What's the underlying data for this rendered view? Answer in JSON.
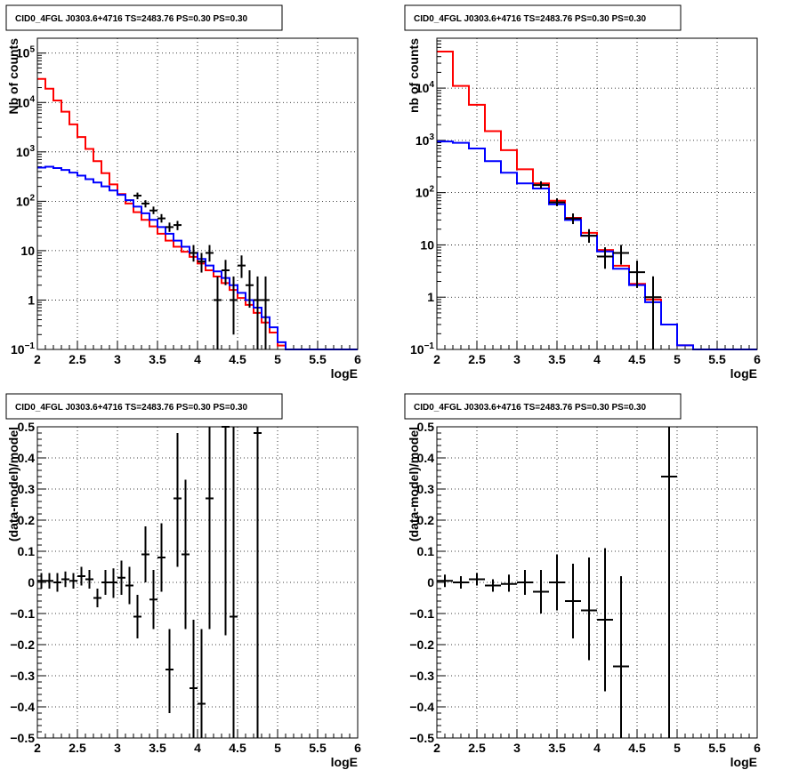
{
  "chart_data": [
    {
      "type": "step",
      "title": "CID0_4FGL J0303.6+4716 TS=2483.76 PS=0.30 PS=0.30",
      "xlabel": "logE",
      "ylabel": "Nb of counts",
      "xlim": [
        2,
        6
      ],
      "ylim": [
        0.1,
        200000
      ],
      "yscale": "log",
      "grid": true,
      "x_ticks": [
        "2",
        "2.5",
        "3",
        "3.5",
        "4",
        "4.5",
        "5",
        "5.5",
        "6"
      ],
      "y_ticks": [
        {
          "v": 0.1,
          "label": "10",
          "sup": "−1"
        },
        {
          "v": 1,
          "label": "1",
          "sup": ""
        },
        {
          "v": 10,
          "label": "10",
          "sup": ""
        },
        {
          "v": 100,
          "label": "10",
          "sup": "2"
        },
        {
          "v": 1000,
          "label": "10",
          "sup": "3"
        },
        {
          "v": 10000,
          "label": "10",
          "sup": "4"
        },
        {
          "v": 100000,
          "label": "10",
          "sup": "5"
        }
      ],
      "bin_edges": [
        2.0,
        2.1,
        2.2,
        2.3,
        2.4,
        2.5,
        2.6,
        2.7,
        2.8,
        2.9,
        3.0,
        3.1,
        3.2,
        3.3,
        3.4,
        3.5,
        3.6,
        3.7,
        3.8,
        3.9,
        4.0,
        4.1,
        4.2,
        4.3,
        4.4,
        4.5,
        4.6,
        4.7,
        4.8,
        4.9,
        5.0,
        5.1,
        5.2,
        5.3,
        5.4,
        5.5,
        5.6,
        5.7,
        5.8,
        5.9,
        6.0
      ],
      "series": [
        {
          "color": "#ff0000",
          "values": [
            30000,
            19000,
            11000,
            6500,
            3600,
            2000,
            1150,
            650,
            370,
            220,
            140,
            90,
            60,
            42,
            31,
            22,
            16,
            12,
            9.5,
            7.5,
            5.5,
            4.0,
            3.0,
            2.2,
            1.6,
            1.1,
            0.8,
            0.55,
            0.35,
            0.22,
            0.12,
            0.1,
            0.1,
            0.1,
            0.1,
            0.1,
            0.1,
            0.1,
            0.1,
            0.1
          ]
        },
        {
          "color": "#0000ff",
          "values": [
            480,
            500,
            470,
            430,
            380,
            330,
            280,
            240,
            200,
            165,
            135,
            105,
            78,
            57,
            42,
            30,
            22,
            16,
            12,
            9.0,
            6.8,
            5.0,
            3.8,
            2.8,
            2.0,
            1.4,
            1.0,
            0.7,
            0.45,
            0.28,
            0.14,
            0.1,
            0.1,
            0.1,
            0.1,
            0.1,
            0.1,
            0.1,
            0.1,
            0.1
          ]
        }
      ],
      "points": [
        {
          "x": 3.25,
          "y": 130,
          "ex": 0.05,
          "lo": 110,
          "hi": 150
        },
        {
          "x": 3.35,
          "y": 90,
          "ex": 0.05,
          "lo": 75,
          "hi": 105
        },
        {
          "x": 3.45,
          "y": 65,
          "ex": 0.05,
          "lo": 55,
          "hi": 78
        },
        {
          "x": 3.55,
          "y": 45,
          "ex": 0.05,
          "lo": 37,
          "hi": 55
        },
        {
          "x": 3.65,
          "y": 30,
          "ex": 0.05,
          "lo": 24,
          "hi": 37
        },
        {
          "x": 3.75,
          "y": 33,
          "ex": 0.05,
          "lo": 26,
          "hi": 40
        },
        {
          "x": 3.95,
          "y": 9,
          "ex": 0.05,
          "lo": 6,
          "hi": 13
        },
        {
          "x": 4.05,
          "y": 6,
          "ex": 0.05,
          "lo": 3.6,
          "hi": 9
        },
        {
          "x": 4.15,
          "y": 9,
          "ex": 0.05,
          "lo": 6,
          "hi": 13
        },
        {
          "x": 4.25,
          "y": 1,
          "ex": 0.05,
          "lo": 0.1,
          "hi": 3
        },
        {
          "x": 4.35,
          "y": 4,
          "ex": 0.05,
          "lo": 2,
          "hi": 6.5
        },
        {
          "x": 4.45,
          "y": 1,
          "ex": 0.05,
          "lo": 0.2,
          "hi": 3
        },
        {
          "x": 4.55,
          "y": 5,
          "ex": 0.05,
          "lo": 2.8,
          "hi": 8
        },
        {
          "x": 4.65,
          "y": 2,
          "ex": 0.05,
          "lo": 0.7,
          "hi": 4
        },
        {
          "x": 4.75,
          "y": 1,
          "ex": 0.05,
          "lo": 0.1,
          "hi": 3
        },
        {
          "x": 4.85,
          "y": 1,
          "ex": 0.05,
          "lo": 0.1,
          "hi": 3
        }
      ]
    },
    {
      "type": "step",
      "title": "CID0_4FGL J0303.6+4716 TS=2483.76 PS=0.30 PS=0.30",
      "xlabel": "logE",
      "ylabel": "nb of counts",
      "xlim": [
        2,
        6
      ],
      "ylim": [
        0.1,
        90000
      ],
      "yscale": "log",
      "grid": true,
      "x_ticks": [
        "2",
        "2.5",
        "3",
        "3.5",
        "4",
        "4.5",
        "5",
        "5.5",
        "6"
      ],
      "y_ticks": [
        {
          "v": 0.1,
          "label": "10",
          "sup": "−1"
        },
        {
          "v": 1,
          "label": "1",
          "sup": ""
        },
        {
          "v": 10,
          "label": "10",
          "sup": ""
        },
        {
          "v": 100,
          "label": "10",
          "sup": "2"
        },
        {
          "v": 1000,
          "label": "10",
          "sup": "3"
        },
        {
          "v": 10000,
          "label": "10",
          "sup": "4"
        }
      ],
      "bin_edges": [
        2.0,
        2.2,
        2.4,
        2.6,
        2.8,
        3.0,
        3.2,
        3.4,
        3.6,
        3.8,
        4.0,
        4.2,
        4.4,
        4.6,
        4.8,
        5.0,
        5.2,
        5.4,
        5.6,
        5.8,
        6.0
      ],
      "series": [
        {
          "color": "#ff0000",
          "values": [
            50000,
            11000,
            4800,
            1500,
            650,
            280,
            150,
            70,
            33,
            17,
            8,
            4,
            1.8,
            0.9,
            0.3,
            0.12,
            0.1,
            0.1,
            0.1,
            0.1
          ]
        },
        {
          "color": "#0000ff",
          "values": [
            950,
            900,
            700,
            400,
            240,
            150,
            120,
            60,
            30,
            15,
            7.5,
            3.5,
            1.7,
            0.8,
            0.3,
            0.12,
            0.1,
            0.1,
            0.1,
            0.1
          ]
        }
      ],
      "points": [
        {
          "x": 3.3,
          "y": 140,
          "ex": 0.1,
          "lo": 120,
          "hi": 165
        },
        {
          "x": 3.5,
          "y": 65,
          "ex": 0.1,
          "lo": 55,
          "hi": 78
        },
        {
          "x": 3.7,
          "y": 32,
          "ex": 0.1,
          "lo": 25,
          "hi": 40
        },
        {
          "x": 3.9,
          "y": 15,
          "ex": 0.1,
          "lo": 11,
          "hi": 20
        },
        {
          "x": 4.1,
          "y": 6,
          "ex": 0.1,
          "lo": 3.5,
          "hi": 9
        },
        {
          "x": 4.3,
          "y": 7,
          "ex": 0.1,
          "lo": 4.2,
          "hi": 10
        },
        {
          "x": 4.5,
          "y": 3,
          "ex": 0.1,
          "lo": 1.5,
          "hi": 5
        },
        {
          "x": 4.7,
          "y": 1,
          "ex": 0.1,
          "lo": 0.1,
          "hi": 2.5
        }
      ]
    },
    {
      "type": "scatter",
      "title": "CID0_4FGL J0303.6+4716 TS=2483.76 PS=0.30 PS=0.30",
      "xlabel": "logE",
      "ylabel": "(data-model)/model",
      "xlim": [
        2,
        6
      ],
      "ylim": [
        -0.5,
        0.5
      ],
      "yscale": "linear",
      "grid": true,
      "x_ticks": [
        "2",
        "2.5",
        "3",
        "3.5",
        "4",
        "4.5",
        "5",
        "5.5",
        "6"
      ],
      "y_ticks": [
        {
          "v": -0.5,
          "label": "−0.5"
        },
        {
          "v": -0.4,
          "label": "−0.4"
        },
        {
          "v": -0.3,
          "label": "−0.3"
        },
        {
          "v": -0.2,
          "label": "−0.2"
        },
        {
          "v": -0.1,
          "label": "−0.1"
        },
        {
          "v": 0,
          "label": "0"
        },
        {
          "v": 0.1,
          "label": "0.1"
        },
        {
          "v": 0.2,
          "label": "0.2"
        },
        {
          "v": 0.3,
          "label": "0.3"
        },
        {
          "v": 0.4,
          "label": "0.4"
        },
        {
          "v": 0.5,
          "label": "0.5"
        }
      ],
      "points": [
        {
          "x": 2.05,
          "y": 0.005,
          "ex": 0.05,
          "lo": -0.02,
          "hi": 0.03
        },
        {
          "x": 2.15,
          "y": 0.005,
          "ex": 0.05,
          "lo": -0.02,
          "hi": 0.03
        },
        {
          "x": 2.25,
          "y": 0.0,
          "ex": 0.05,
          "lo": -0.03,
          "hi": 0.03
        },
        {
          "x": 2.35,
          "y": 0.01,
          "ex": 0.05,
          "lo": -0.015,
          "hi": 0.035
        },
        {
          "x": 2.45,
          "y": 0.005,
          "ex": 0.05,
          "lo": -0.02,
          "hi": 0.03
        },
        {
          "x": 2.55,
          "y": 0.02,
          "ex": 0.05,
          "lo": -0.01,
          "hi": 0.05
        },
        {
          "x": 2.65,
          "y": 0.01,
          "ex": 0.05,
          "lo": -0.02,
          "hi": 0.04
        },
        {
          "x": 2.75,
          "y": -0.05,
          "ex": 0.05,
          "lo": -0.08,
          "hi": -0.02
        },
        {
          "x": 2.85,
          "y": 0.0,
          "ex": 0.05,
          "lo": -0.04,
          "hi": 0.04
        },
        {
          "x": 2.95,
          "y": 0.0,
          "ex": 0.05,
          "lo": -0.05,
          "hi": 0.045
        },
        {
          "x": 3.05,
          "y": 0.015,
          "ex": 0.05,
          "lo": -0.04,
          "hi": 0.07
        },
        {
          "x": 3.15,
          "y": -0.01,
          "ex": 0.05,
          "lo": -0.07,
          "hi": 0.05
        },
        {
          "x": 3.25,
          "y": -0.11,
          "ex": 0.05,
          "lo": -0.18,
          "hi": -0.04
        },
        {
          "x": 3.35,
          "y": 0.09,
          "ex": 0.05,
          "lo": 0.0,
          "hi": 0.18
        },
        {
          "x": 3.45,
          "y": -0.055,
          "ex": 0.05,
          "lo": -0.15,
          "hi": 0.04
        },
        {
          "x": 3.55,
          "y": 0.08,
          "ex": 0.05,
          "lo": -0.03,
          "hi": 0.19
        },
        {
          "x": 3.65,
          "y": -0.28,
          "ex": 0.05,
          "lo": -0.42,
          "hi": -0.15
        },
        {
          "x": 3.75,
          "y": 0.27,
          "ex": 0.05,
          "lo": 0.05,
          "hi": 0.48
        },
        {
          "x": 3.85,
          "y": 0.09,
          "ex": 0.05,
          "lo": -0.15,
          "hi": 0.33
        },
        {
          "x": 3.95,
          "y": -0.34,
          "ex": 0.05,
          "lo": -0.5,
          "hi": -0.12
        },
        {
          "x": 4.05,
          "y": -0.39,
          "ex": 0.05,
          "lo": -0.5,
          "hi": -0.15
        },
        {
          "x": 4.15,
          "y": 0.27,
          "ex": 0.05,
          "lo": -0.15,
          "hi": 0.5
        },
        {
          "x": 4.35,
          "y": 0.5,
          "ex": 0.05,
          "lo": -0.17,
          "hi": 0.5
        },
        {
          "x": 4.45,
          "y": -0.11,
          "ex": 0.05,
          "lo": -0.5,
          "hi": 0.5
        },
        {
          "x": 4.75,
          "y": 0.48,
          "ex": 0.05,
          "lo": -0.5,
          "hi": 0.5
        }
      ]
    },
    {
      "type": "scatter",
      "title": "CID0_4FGL J0303.6+4716 TS=2483.76 PS=0.30 PS=0.30",
      "xlabel": "logE",
      "ylabel": "(data-model)/model",
      "xlim": [
        2,
        6
      ],
      "ylim": [
        -0.5,
        0.5
      ],
      "yscale": "linear",
      "grid": true,
      "x_ticks": [
        "2",
        "2.5",
        "3",
        "3.5",
        "4",
        "4.5",
        "5",
        "5.5",
        "6"
      ],
      "y_ticks": [
        {
          "v": -0.5,
          "label": "−0.5"
        },
        {
          "v": -0.4,
          "label": "−0.4"
        },
        {
          "v": -0.3,
          "label": "−0.3"
        },
        {
          "v": -0.2,
          "label": "−0.2"
        },
        {
          "v": -0.1,
          "label": "−0.1"
        },
        {
          "v": 0,
          "label": "0"
        },
        {
          "v": 0.1,
          "label": "0.1"
        },
        {
          "v": 0.2,
          "label": "0.2"
        },
        {
          "v": 0.3,
          "label": "0.3"
        },
        {
          "v": 0.4,
          "label": "0.4"
        },
        {
          "v": 0.5,
          "label": "0.5"
        }
      ],
      "points": [
        {
          "x": 2.1,
          "y": 0.005,
          "ex": 0.1,
          "lo": -0.015,
          "hi": 0.025
        },
        {
          "x": 2.3,
          "y": 0.0,
          "ex": 0.1,
          "lo": -0.02,
          "hi": 0.02
        },
        {
          "x": 2.5,
          "y": 0.01,
          "ex": 0.1,
          "lo": -0.01,
          "hi": 0.03
        },
        {
          "x": 2.7,
          "y": -0.01,
          "ex": 0.1,
          "lo": -0.03,
          "hi": 0.01
        },
        {
          "x": 2.9,
          "y": -0.005,
          "ex": 0.1,
          "lo": -0.03,
          "hi": 0.025
        },
        {
          "x": 3.1,
          "y": 0.0,
          "ex": 0.1,
          "lo": -0.04,
          "hi": 0.04
        },
        {
          "x": 3.3,
          "y": -0.03,
          "ex": 0.1,
          "lo": -0.1,
          "hi": 0.04
        },
        {
          "x": 3.5,
          "y": 0.0,
          "ex": 0.1,
          "lo": -0.09,
          "hi": 0.09
        },
        {
          "x": 3.7,
          "y": -0.06,
          "ex": 0.1,
          "lo": -0.18,
          "hi": 0.06
        },
        {
          "x": 3.9,
          "y": -0.09,
          "ex": 0.1,
          "lo": -0.25,
          "hi": 0.08
        },
        {
          "x": 4.1,
          "y": -0.12,
          "ex": 0.1,
          "lo": -0.35,
          "hi": 0.11
        },
        {
          "x": 4.3,
          "y": -0.27,
          "ex": 0.1,
          "lo": -0.5,
          "hi": 0.02
        },
        {
          "x": 4.9,
          "y": 0.34,
          "ex": 0.1,
          "lo": -0.5,
          "hi": 0.5
        }
      ]
    }
  ]
}
